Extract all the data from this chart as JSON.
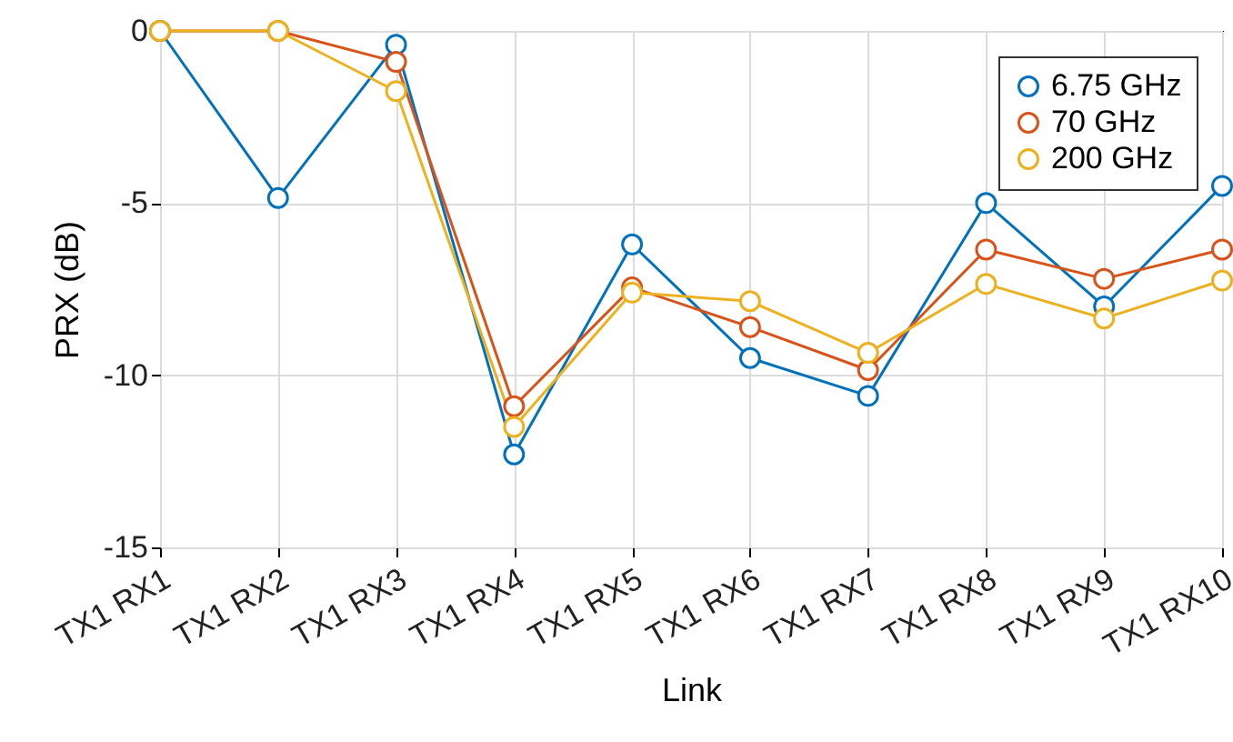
{
  "chart_data": {
    "type": "line",
    "xlabel": "Link",
    "ylabel": "PRX (dB)",
    "categories": [
      "TX1 RX1",
      "TX1 RX2",
      "TX1 RX3",
      "TX1 RX4",
      "TX1 RX5",
      "TX1 RX6",
      "TX1 RX7",
      "TX1 RX8",
      "TX1 RX9",
      "TX1 RX10"
    ],
    "series": [
      {
        "name": "6.75 GHz",
        "color": "#0072bd",
        "values": [
          0,
          -4.85,
          -0.4,
          -12.3,
          -6.2,
          -9.5,
          -10.6,
          -5.0,
          -8.0,
          -4.5
        ]
      },
      {
        "name": "70 GHz",
        "color": "#d95319",
        "values": [
          0,
          0,
          -0.9,
          -10.9,
          -7.45,
          -8.6,
          -9.85,
          -6.35,
          -7.2,
          -6.35
        ]
      },
      {
        "name": "200 GHz",
        "color": "#edb120",
        "values": [
          0,
          0,
          -1.75,
          -11.5,
          -7.6,
          -7.85,
          -9.35,
          -7.35,
          -8.35,
          -7.25
        ]
      }
    ],
    "ylim": [
      -15,
      0
    ],
    "yticks": [
      -15,
      -10,
      -5,
      0
    ],
    "grid": true,
    "legend": "top right",
    "marker": "circle",
    "line_style": "solid"
  }
}
